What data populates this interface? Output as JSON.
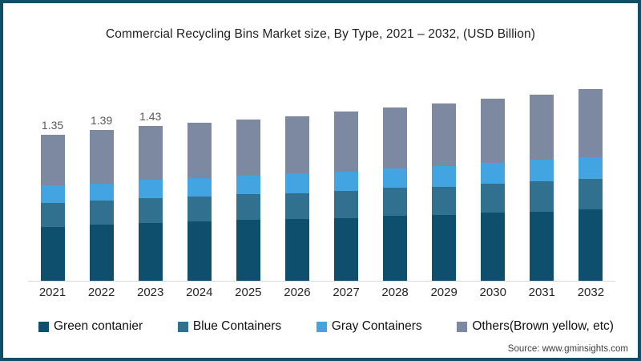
{
  "title": "Commercial Recycling Bins Market size, By Type, 2021 – 2032, (USD Billion)",
  "source": "Source: www.gminsights.com",
  "frame": {
    "border_color": "#114F68",
    "background": "#FFFFFF"
  },
  "chart_data": {
    "type": "bar",
    "stacked": true,
    "grid": false,
    "legend_position": "bottom",
    "xlabel": "",
    "ylabel": "",
    "ylim": [
      0,
      2
    ],
    "categories": [
      "2021",
      "2022",
      "2023",
      "2024",
      "2025",
      "2026",
      "2027",
      "2028",
      "2029",
      "2030",
      "2031",
      "2032"
    ],
    "series": [
      {
        "name": "Green contanier",
        "color": "#0D4F6C",
        "values": [
          0.5,
          0.52,
          0.53,
          0.55,
          0.56,
          0.57,
          0.58,
          0.6,
          0.61,
          0.63,
          0.64,
          0.66
        ]
      },
      {
        "name": "Blue Containers",
        "color": "#31708F",
        "values": [
          0.22,
          0.22,
          0.23,
          0.23,
          0.24,
          0.24,
          0.25,
          0.26,
          0.26,
          0.27,
          0.28,
          0.28
        ]
      },
      {
        "name": "Gray Containers",
        "color": "#42A4E0",
        "values": [
          0.16,
          0.16,
          0.17,
          0.17,
          0.17,
          0.18,
          0.18,
          0.18,
          0.19,
          0.19,
          0.2,
          0.2
        ]
      },
      {
        "name": "Others(Brown yellow, etc)",
        "color": "#7D89A0",
        "values": [
          0.47,
          0.49,
          0.5,
          0.51,
          0.52,
          0.53,
          0.55,
          0.56,
          0.58,
          0.59,
          0.6,
          0.63
        ]
      }
    ],
    "totals": [
      1.35,
      1.39,
      1.43,
      1.46,
      1.49,
      1.52,
      1.56,
      1.6,
      1.64,
      1.68,
      1.72,
      1.77
    ],
    "bar_labels": [
      "1.35",
      "1.39",
      "1.43",
      "",
      "",
      "",
      "",
      "",
      "",
      "",
      "",
      ""
    ],
    "axis_line_color": "#D8D8D8",
    "value_label_color": "#595959"
  }
}
